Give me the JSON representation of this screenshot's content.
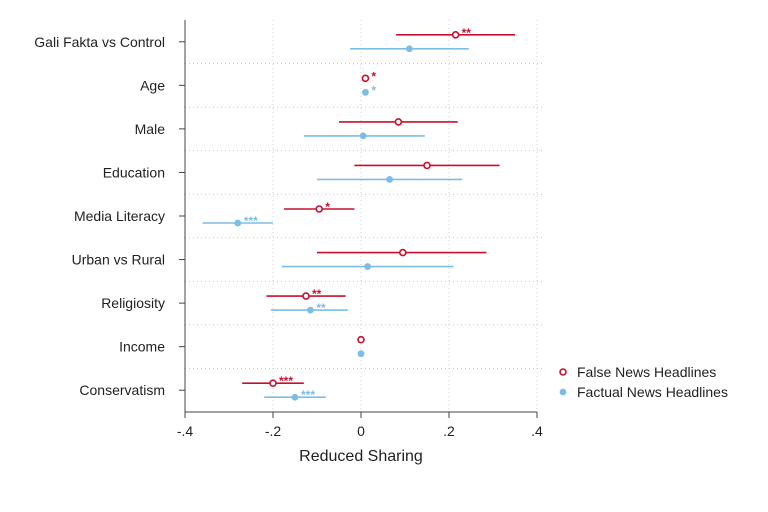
{
  "chart_data": {
    "type": "scatter",
    "subtype": "coefficient-plot",
    "xlabel": "Reduced Sharing",
    "xlim": [
      -0.4,
      0.4
    ],
    "xticks": [
      -0.4,
      -0.2,
      0,
      0.2,
      0.4
    ],
    "xtick_labels": [
      "-.4",
      "-.2",
      "0",
      ".2",
      ".4"
    ],
    "grid": true,
    "legend_position": "right",
    "categories": [
      "Gali Fakta vs Control",
      "Age",
      "Male",
      "Education",
      "Media Literacy",
      "Urban vs Rural",
      "Religiosity",
      "Income",
      "Conservatism"
    ],
    "series": [
      {
        "name": "False News Headlines",
        "color": "#c8102e",
        "marker": "hollow-circle",
        "points": [
          {
            "category": "Gali Fakta vs Control",
            "estimate": 0.215,
            "ci": [
              0.08,
              0.35
            ],
            "stars": "**"
          },
          {
            "category": "Age",
            "estimate": 0.01,
            "ci": [
              0.01,
              0.01
            ],
            "stars": "*"
          },
          {
            "category": "Male",
            "estimate": 0.085,
            "ci": [
              -0.05,
              0.22
            ],
            "stars": ""
          },
          {
            "category": "Education",
            "estimate": 0.15,
            "ci": [
              -0.015,
              0.315
            ],
            "stars": ""
          },
          {
            "category": "Media Literacy",
            "estimate": -0.095,
            "ci": [
              -0.175,
              -0.015
            ],
            "stars": "*"
          },
          {
            "category": "Urban vs Rural",
            "estimate": 0.095,
            "ci": [
              -0.1,
              0.285
            ],
            "stars": ""
          },
          {
            "category": "Religiosity",
            "estimate": -0.125,
            "ci": [
              -0.215,
              -0.035
            ],
            "stars": "**"
          },
          {
            "category": "Income",
            "estimate": 0.0,
            "ci": [
              0.0,
              0.0
            ],
            "stars": ""
          },
          {
            "category": "Conservatism",
            "estimate": -0.2,
            "ci": [
              -0.27,
              -0.13
            ],
            "stars": "***"
          }
        ]
      },
      {
        "name": "Factual News Headlines",
        "color": "#7cbde6",
        "marker": "filled-circle",
        "points": [
          {
            "category": "Gali Fakta vs Control",
            "estimate": 0.11,
            "ci": [
              -0.025,
              0.245
            ],
            "stars": ""
          },
          {
            "category": "Age",
            "estimate": 0.01,
            "ci": [
              0.01,
              0.01
            ],
            "stars": "*"
          },
          {
            "category": "Male",
            "estimate": 0.005,
            "ci": [
              -0.13,
              0.145
            ],
            "stars": ""
          },
          {
            "category": "Education",
            "estimate": 0.065,
            "ci": [
              -0.1,
              0.23
            ],
            "stars": ""
          },
          {
            "category": "Media Literacy",
            "estimate": -0.28,
            "ci": [
              -0.36,
              -0.2
            ],
            "stars": "***"
          },
          {
            "category": "Urban vs Rural",
            "estimate": 0.015,
            "ci": [
              -0.18,
              0.21
            ],
            "stars": ""
          },
          {
            "category": "Religiosity",
            "estimate": -0.115,
            "ci": [
              -0.205,
              -0.03
            ],
            "stars": "**"
          },
          {
            "category": "Income",
            "estimate": 0.0,
            "ci": [
              0.0,
              0.0
            ],
            "stars": ""
          },
          {
            "category": "Conservatism",
            "estimate": -0.15,
            "ci": [
              -0.22,
              -0.08
            ],
            "stars": "***"
          }
        ]
      }
    ]
  }
}
